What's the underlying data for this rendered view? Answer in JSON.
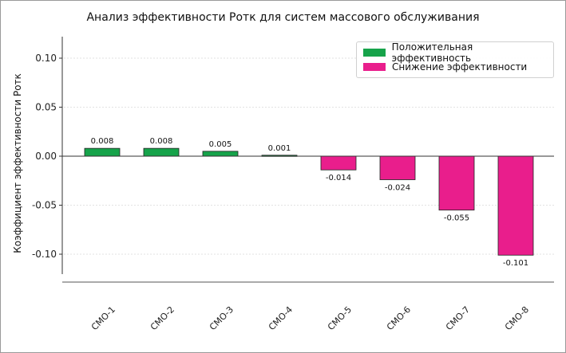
{
  "chart_data": {
    "type": "bar",
    "title": "Анализ эффективности Ротк для систем массового обслуживания",
    "xlabel": "",
    "ylabel": "Коэффициент эффективности Ротк",
    "categories": [
      "СМО-1",
      "СМО-2",
      "СМО-3",
      "СМО-4",
      "СМО-5",
      "СМО-6",
      "СМО-7",
      "СМО-8"
    ],
    "values": [
      0.008,
      0.008,
      0.005,
      0.001,
      -0.014,
      -0.024,
      -0.055,
      -0.101
    ],
    "value_labels": [
      "0.008",
      "0.008",
      "0.005",
      "0.001",
      "-0.014",
      "-0.024",
      "-0.055",
      "-0.101"
    ],
    "ylim": [
      -0.12,
      0.12
    ],
    "yticks": [
      0.1,
      0.05,
      0.0,
      -0.05,
      -0.1
    ],
    "ytick_labels": [
      "0.10",
      "0.05",
      "0.00",
      "-0.05",
      "-0.10"
    ],
    "grid": true,
    "legend_position": "top-right",
    "legend": [
      {
        "label": "Положительная эффективность",
        "color": "#16a34a"
      },
      {
        "label": "Снижение эффективности",
        "color": "#e91e8c"
      }
    ],
    "colors": {
      "positive": "#16a34a",
      "negative": "#e91e8c"
    }
  }
}
